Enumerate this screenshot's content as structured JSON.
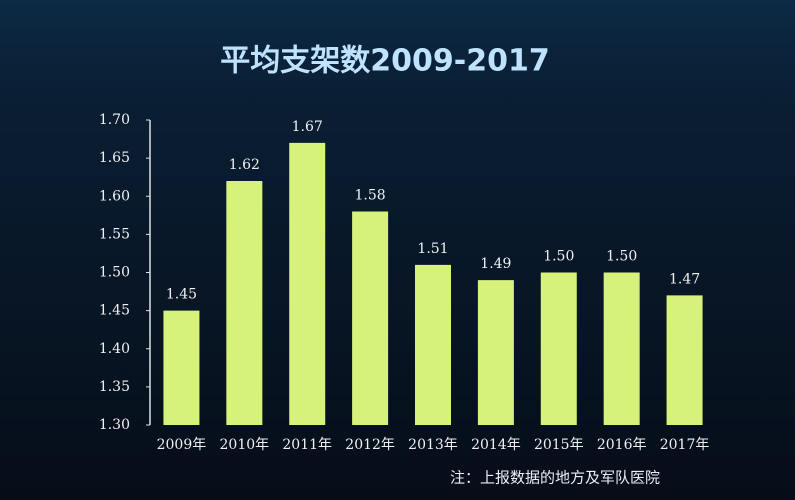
{
  "chart_data": {
    "type": "bar",
    "title": "平均支架数2009-2017",
    "categories": [
      "2009年",
      "2010年",
      "2011年",
      "2012年",
      "2013年",
      "2014年",
      "2015年",
      "2016年",
      "2017年"
    ],
    "values": [
      1.45,
      1.62,
      1.67,
      1.58,
      1.51,
      1.49,
      1.5,
      1.5,
      1.47
    ],
    "value_labels": [
      "1.45",
      "1.62",
      "1.67",
      "1.58",
      "1.51",
      "1.49",
      "1.50",
      "1.50",
      "1.47"
    ],
    "color": "#d6f27a",
    "ylim": [
      1.3,
      1.7
    ],
    "yticks": [
      {
        "value": 1.3,
        "label": "1.30"
      },
      1.35,
      {
        "value": 1.4,
        "label": "1.40"
      },
      1.45,
      {
        "value": 1.5,
        "label": "1.50"
      },
      1.55,
      {
        "value": 1.6,
        "label": "1.60"
      },
      1.65,
      {
        "value": 1.7,
        "label": "1.70"
      }
    ],
    "grid": false,
    "note": "注：上报数据的地方及军队医院"
  }
}
